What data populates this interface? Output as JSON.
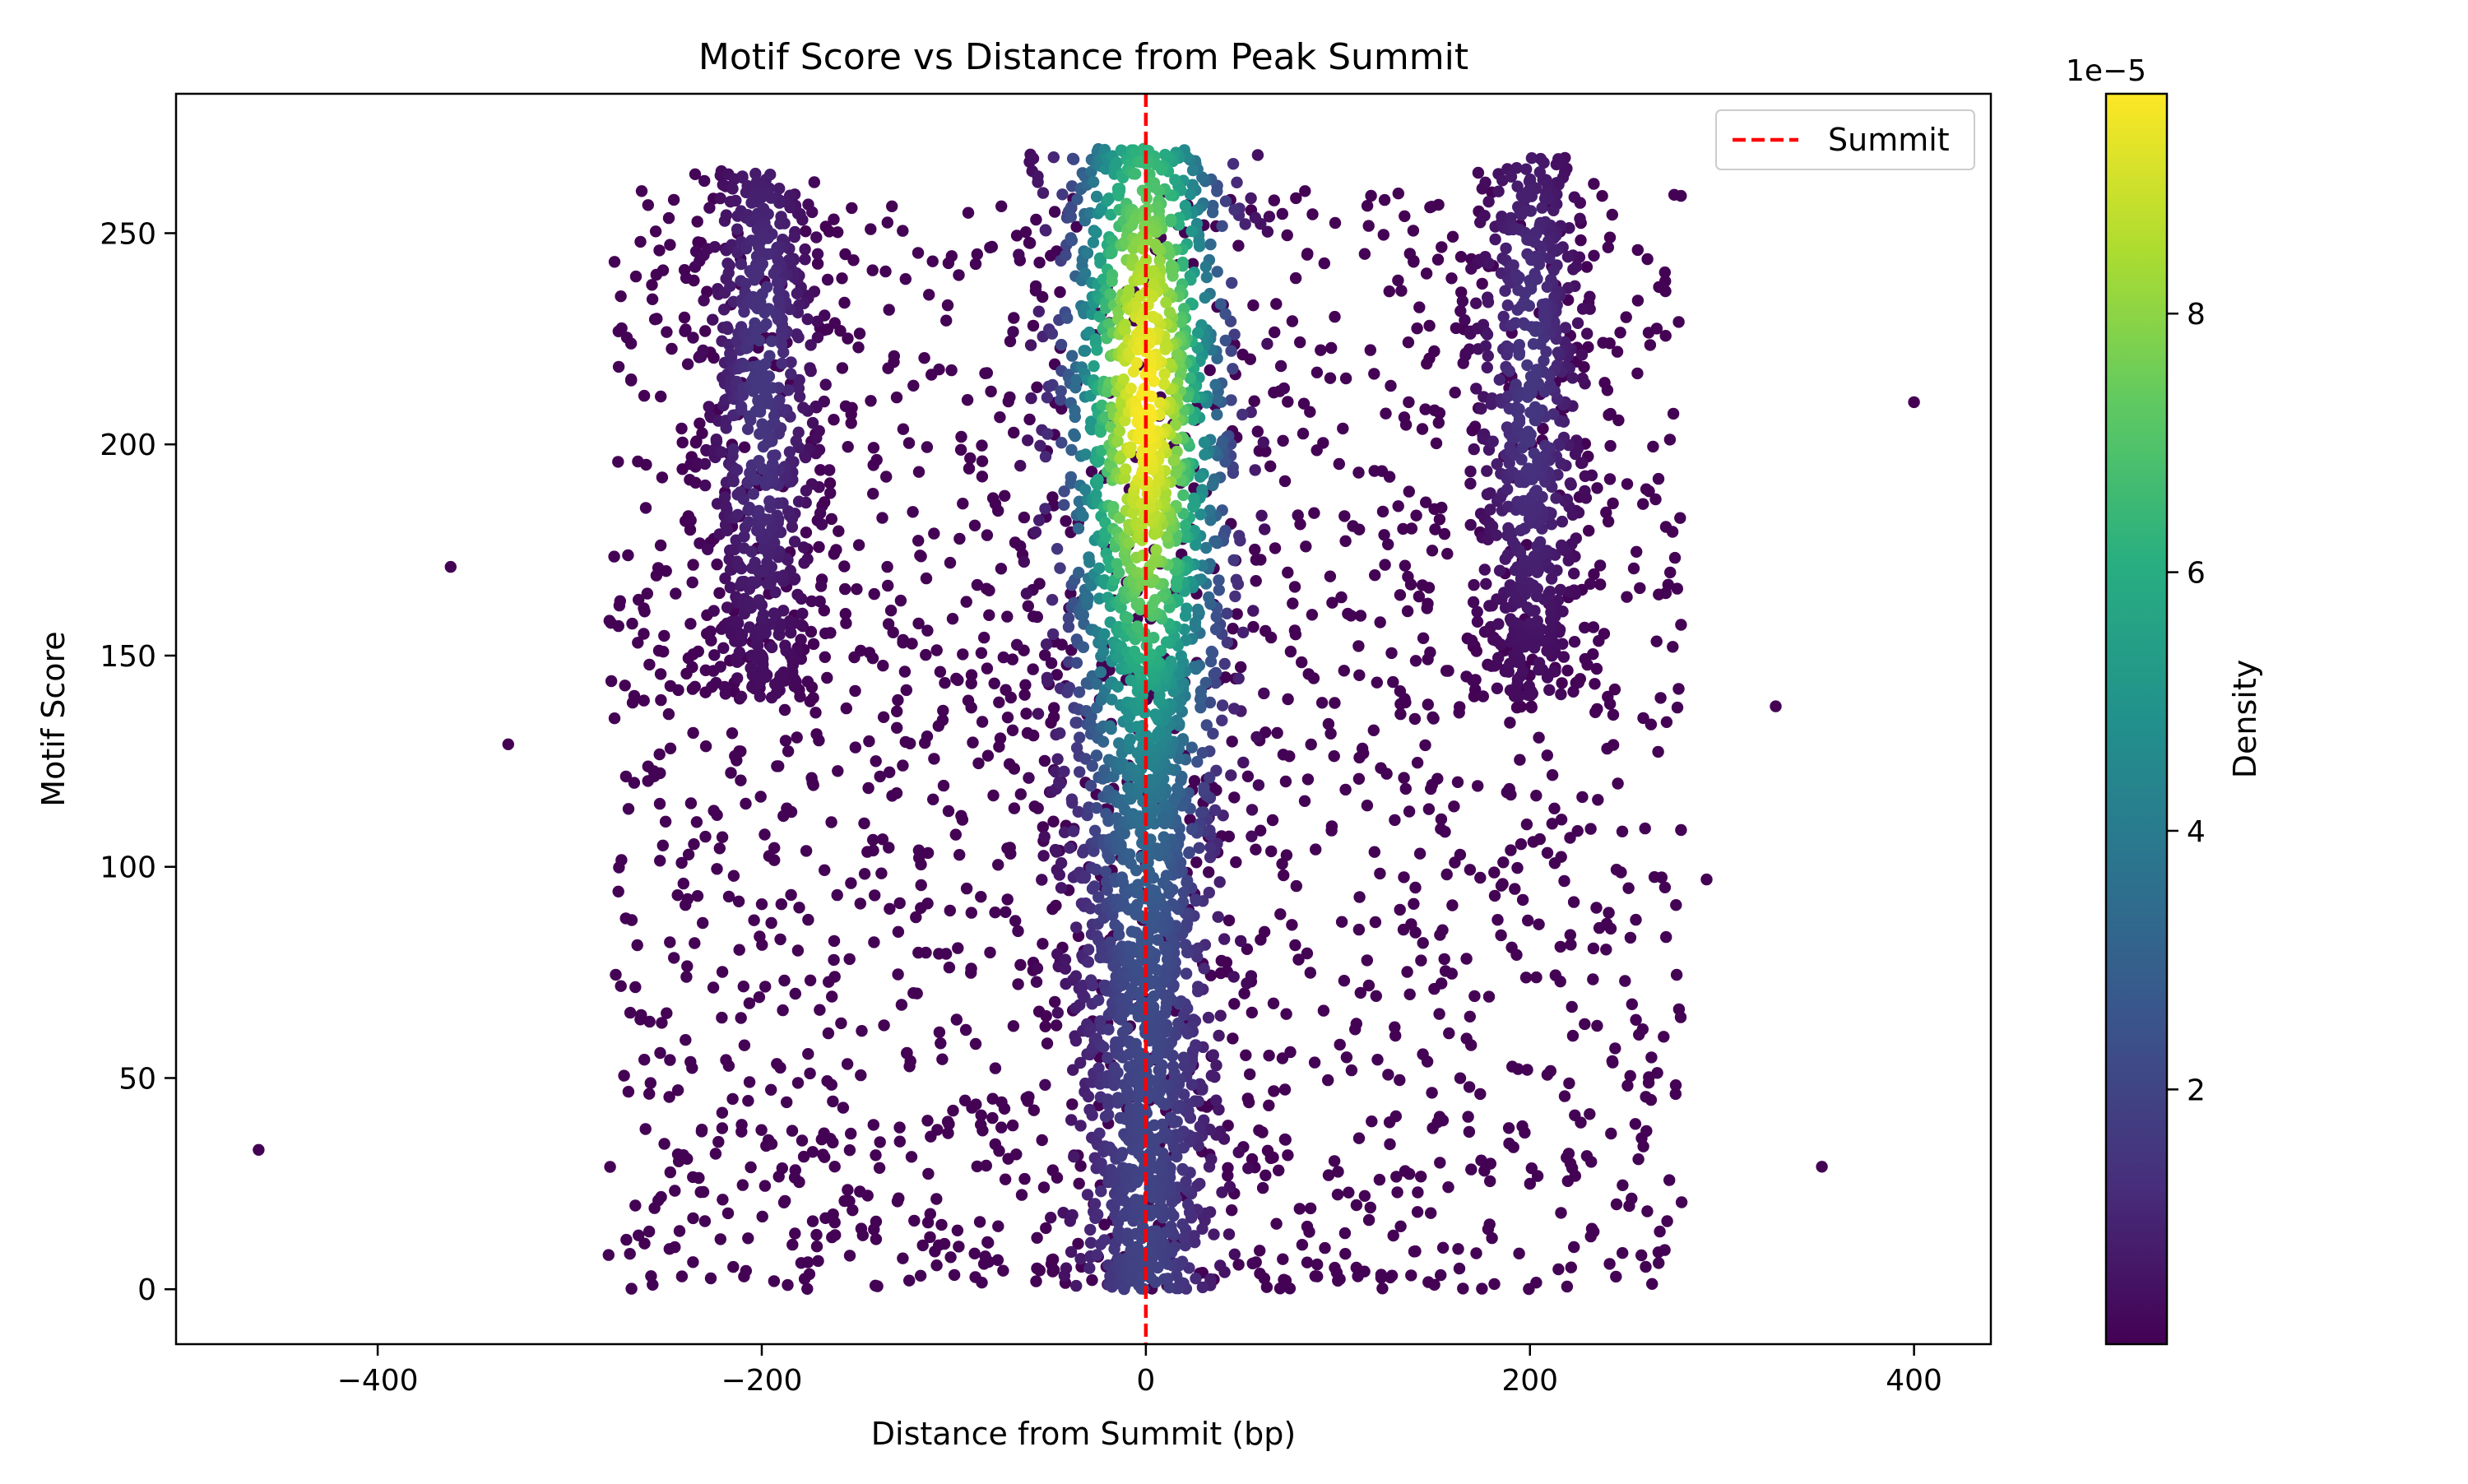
{
  "chart_data": {
    "type": "scatter",
    "title": "Motif Score vs Distance from Peak Summit",
    "xlabel": "Distance from Summit (bp)",
    "ylabel": "Motif Score",
    "xlim": [
      -505,
      440
    ],
    "ylim": [
      -13,
      283
    ],
    "xticks": [
      -400,
      -200,
      0,
      200,
      400
    ],
    "xtick_labels": [
      "−400",
      "−200",
      "0",
      "200",
      "400"
    ],
    "yticks": [
      0,
      50,
      100,
      150,
      200,
      250
    ],
    "ytick_labels": [
      "0",
      "50",
      "100",
      "150",
      "200",
      "250"
    ],
    "grid": false,
    "legend": {
      "placement": "top-right",
      "entries": [
        {
          "label": "Summit",
          "style": "dashed",
          "color": "#ff0000"
        }
      ]
    },
    "reference_lines": [
      {
        "orientation": "vertical",
        "x": 0,
        "label": "Summit",
        "color": "#ff0000",
        "style": "dashed"
      }
    ],
    "colorbar": {
      "label": "Density",
      "colormap": "viridis",
      "offset_label": "1e−5",
      "range": [
        0.03,
        9.7
      ],
      "ticks": [
        2,
        4,
        6,
        8
      ],
      "tick_labels": [
        "2",
        "4",
        "6",
        "8"
      ]
    },
    "clusters": [
      {
        "name": "central",
        "center_x": 0,
        "spread_x": 24,
        "y_min": 0,
        "y_max": 270,
        "peak_y": 210,
        "peak_density": 9.7
      },
      {
        "name": "left",
        "center_x": -200,
        "spread_x": 16,
        "y_min": 140,
        "y_max": 265,
        "peak_y": 215,
        "peak_density": 1.5
      },
      {
        "name": "right",
        "center_x": 200,
        "spread_x": 16,
        "y_min": 140,
        "y_max": 268,
        "peak_y": 215,
        "peak_density": 1.5
      },
      {
        "name": "background",
        "x_min": -280,
        "x_max": 280,
        "y_min": 0,
        "y_max": 260,
        "density": 0.05
      }
    ],
    "outliers": [
      {
        "x": -462,
        "y": 33
      },
      {
        "x": -362,
        "y": 171
      },
      {
        "x": -332,
        "y": 129
      },
      {
        "x": 292,
        "y": 97
      },
      {
        "x": 328,
        "y": 138
      },
      {
        "x": 352,
        "y": 29
      },
      {
        "x": 400,
        "y": 210
      }
    ],
    "colors": {
      "summit_line": "#ff0000",
      "axis": "#000000",
      "low_density": "#440154",
      "high_density": "#fde725"
    }
  }
}
